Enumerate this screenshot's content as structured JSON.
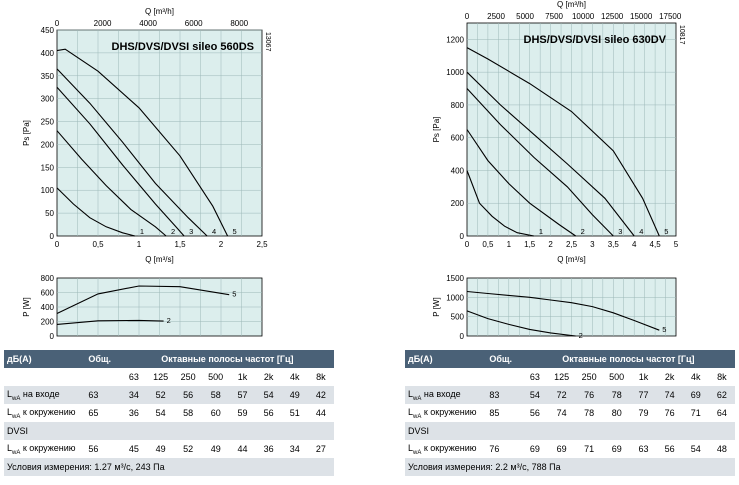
{
  "charts": [
    {
      "model": "DHS/DVS/DVSI sileo 560DS",
      "code": "13067",
      "top_axis_label": "Q [m³/h]",
      "top_ticks": [
        "0",
        "2000",
        "4000",
        "6000",
        "8000"
      ],
      "x_label": "Q [m³/s]",
      "x_ticks": [
        "0",
        "0,5",
        "1",
        "1,5",
        "2",
        "2,5"
      ],
      "y_label": "Ps [Pa]",
      "y_ticks": [
        "0",
        "50",
        "100",
        "150",
        "200",
        "250",
        "300",
        "350",
        "400",
        "450"
      ],
      "p_label": "P [W]",
      "p_ticks": [
        "0",
        "200",
        "400",
        "600",
        "800"
      ],
      "curve_labels": [
        "1",
        "2",
        "3",
        "4",
        "5"
      ],
      "power_labels": [
        "2",
        "5"
      ]
    },
    {
      "model": "DHS/DVS/DVSI sileo 630DV",
      "code": "10817",
      "top_axis_label": "Q [m³/h]",
      "top_ticks": [
        "0",
        "2500",
        "5000",
        "7500",
        "10000",
        "12500",
        "15000",
        "17500"
      ],
      "x_label": "Q [m³/s]",
      "x_ticks": [
        "0",
        "0,5",
        "1",
        "1,5",
        "2",
        "2,5",
        "3",
        "3,5",
        "4",
        "4,5",
        "5"
      ],
      "y_label": "Ps [Pa]",
      "y_ticks": [
        "0",
        "200",
        "400",
        "600",
        "800",
        "1000",
        "1200"
      ],
      "p_label": "P [W]",
      "p_ticks": [
        "0",
        "500",
        "1000",
        "1500"
      ],
      "curve_labels": [
        "1",
        "2",
        "3",
        "4",
        "5"
      ],
      "power_labels": [
        "2",
        "5"
      ]
    }
  ],
  "chart_data": [
    {
      "type": "line",
      "title": "DHS/DVS/DVSI sileo 560DS",
      "xlabel": "Q [m³/s]",
      "ylabel": "Ps [Pa]",
      "xlim": [
        0,
        2.5
      ],
      "ylim": [
        0,
        450
      ],
      "grid": true,
      "series": [
        {
          "name": "1",
          "x": [
            0,
            0.2,
            0.4,
            0.6,
            0.8,
            0.95
          ],
          "y": [
            105,
            70,
            40,
            20,
            7,
            0
          ]
        },
        {
          "name": "2",
          "x": [
            0,
            0.3,
            0.6,
            0.9,
            1.2,
            1.33
          ],
          "y": [
            230,
            168,
            110,
            58,
            20,
            0
          ]
        },
        {
          "name": "3",
          "x": [
            0,
            0.4,
            0.8,
            1.2,
            1.45,
            1.55
          ],
          "y": [
            325,
            245,
            155,
            70,
            20,
            0
          ]
        },
        {
          "name": "4",
          "x": [
            0,
            0.4,
            0.8,
            1.2,
            1.6,
            1.83
          ],
          "y": [
            365,
            290,
            205,
            115,
            40,
            0
          ]
        },
        {
          "name": "5",
          "x": [
            0,
            0.1,
            0.5,
            1.0,
            1.5,
            1.9,
            2.08
          ],
          "y": [
            405,
            408,
            360,
            280,
            175,
            65,
            0
          ]
        }
      ],
      "power": {
        "ylabel": "P [W]",
        "ylim": [
          0,
          800
        ],
        "series": [
          {
            "name": "2",
            "x": [
              0,
              0.5,
              1.0,
              1.3
            ],
            "y": [
              160,
              210,
              215,
              205
            ]
          },
          {
            "name": "5",
            "x": [
              0,
              0.5,
              1.0,
              1.5,
              2.1
            ],
            "y": [
              310,
              580,
              690,
              680,
              570
            ]
          }
        ]
      }
    },
    {
      "type": "line",
      "title": "DHS/DVS/DVSI sileo 630DV",
      "xlabel": "Q [m³/s]",
      "ylabel": "Ps [Pa]",
      "xlim": [
        0,
        5
      ],
      "ylim": [
        0,
        1300
      ],
      "grid": true,
      "series": [
        {
          "name": "1",
          "x": [
            0,
            0.3,
            0.6,
            0.9,
            1.2,
            1.6
          ],
          "y": [
            400,
            200,
            120,
            60,
            20,
            0
          ]
        },
        {
          "name": "2",
          "x": [
            0,
            0.5,
            1.0,
            1.5,
            2.2,
            2.6
          ],
          "y": [
            650,
            460,
            320,
            200,
            70,
            0
          ]
        },
        {
          "name": "3",
          "x": [
            0,
            0.8,
            1.6,
            2.4,
            3.0,
            3.5
          ],
          "y": [
            900,
            680,
            480,
            300,
            130,
            0
          ]
        },
        {
          "name": "4",
          "x": [
            0,
            0.8,
            1.6,
            2.4,
            3.3,
            4.0
          ],
          "y": [
            1000,
            800,
            620,
            440,
            230,
            0
          ]
        },
        {
          "name": "5",
          "x": [
            0,
            0.5,
            1.5,
            2.5,
            3.5,
            4.2,
            4.6
          ],
          "y": [
            1150,
            1080,
            930,
            760,
            520,
            230,
            0
          ]
        }
      ],
      "power": {
        "ylabel": "P [W]",
        "ylim": [
          0,
          1500
        ],
        "series": [
          {
            "name": "2",
            "x": [
              0,
              0.5,
              1.0,
              1.5,
              2.0,
              2.6
            ],
            "y": [
              650,
              450,
              300,
              170,
              80,
              0
            ]
          },
          {
            "name": "5",
            "x": [
              0,
              0.5,
              1.0,
              1.5,
              2.0,
              2.5,
              3.0,
              3.5,
              4.0,
              4.6
            ],
            "y": [
              1150,
              1100,
              1050,
              1000,
              930,
              860,
              760,
              600,
              400,
              150
            ]
          }
        ]
      }
    }
  ],
  "tables": [
    {
      "header": {
        "db": "дБ(A)",
        "total": "Общ.",
        "bands": "Октавные полосы частот [Гц]"
      },
      "freqs": [
        "63",
        "125",
        "250",
        "500",
        "1k",
        "2k",
        "4k",
        "8k"
      ],
      "rows": [
        {
          "main": "L",
          "sub": "wA",
          "rest": " на входе",
          "total": "63",
          "values": [
            "34",
            "52",
            "56",
            "58",
            "57",
            "54",
            "49",
            "42"
          ]
        },
        {
          "main": "L",
          "sub": "wA",
          "rest": " к окружению",
          "total": "65",
          "values": [
            "36",
            "54",
            "58",
            "60",
            "59",
            "56",
            "51",
            "44"
          ]
        },
        {
          "main": "DVSI",
          "sub": "",
          "rest": "",
          "total": "",
          "values": [
            "",
            "",
            "",
            "",
            "",
            "",
            "",
            ""
          ]
        },
        {
          "main": "L",
          "sub": "wA",
          "rest": " к окружению",
          "total": "56",
          "values": [
            "45",
            "49",
            "52",
            "49",
            "44",
            "36",
            "34",
            "27"
          ]
        }
      ],
      "footer": "Условия измерения: 1.27 м³/с, 243 Па"
    },
    {
      "header": {
        "db": "дБ(A)",
        "total": "Общ.",
        "bands": "Октавные полосы частот [Гц]"
      },
      "freqs": [
        "63",
        "125",
        "250",
        "500",
        "1k",
        "2k",
        "4k",
        "8k"
      ],
      "rows": [
        {
          "main": "L",
          "sub": "wA",
          "rest": " на входе",
          "total": "83",
          "values": [
            "54",
            "72",
            "76",
            "78",
            "77",
            "74",
            "69",
            "62"
          ]
        },
        {
          "main": "L",
          "sub": "wA",
          "rest": " к окружению",
          "total": "85",
          "values": [
            "56",
            "74",
            "78",
            "80",
            "79",
            "76",
            "71",
            "64"
          ]
        },
        {
          "main": "DVSI",
          "sub": "",
          "rest": "",
          "total": "",
          "values": [
            "",
            "",
            "",
            "",
            "",
            "",
            "",
            ""
          ]
        },
        {
          "main": "L",
          "sub": "wA",
          "rest": " к окружению",
          "total": "76",
          "values": [
            "69",
            "69",
            "71",
            "69",
            "63",
            "56",
            "54",
            "48"
          ]
        }
      ],
      "footer": "Условия измерения: 2.2 м³/с, 788 Па"
    }
  ],
  "colors": {
    "plot_bg": "#dceeed",
    "grid": "#9cb8b8",
    "header_bg": "#4a6177",
    "row_shade": "#dde2e7"
  }
}
